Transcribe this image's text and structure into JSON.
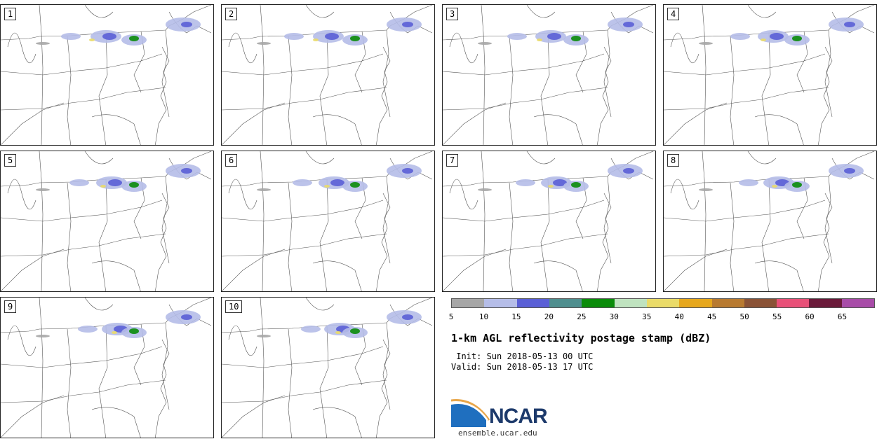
{
  "panels": [
    {
      "label": "1"
    },
    {
      "label": "2"
    },
    {
      "label": "3"
    },
    {
      "label": "4"
    },
    {
      "label": "5"
    },
    {
      "label": "6"
    },
    {
      "label": "7"
    },
    {
      "label": "8"
    },
    {
      "label": "9"
    },
    {
      "label": "10"
    }
  ],
  "colorbar": {
    "colors": [
      "#a6a6a6",
      "#b5bde8",
      "#5a5fd6",
      "#4f8f8f",
      "#0a8c0a",
      "#bfe3bf",
      "#eadb68",
      "#e6a71c",
      "#b87a30",
      "#8a5236",
      "#e85078",
      "#6a1a3a",
      "#a84ca8"
    ],
    "ticks": [
      "5",
      "10",
      "15",
      "20",
      "25",
      "30",
      "35",
      "40",
      "45",
      "50",
      "55",
      "60",
      "65"
    ]
  },
  "title": "1-km AGL reflectivity postage stamp (dBZ)",
  "init": " Init: Sun 2018-05-13 00 UTC",
  "valid": "Valid: Sun 2018-05-13 17 UTC",
  "logo": {
    "text": "NCAR",
    "website": "ensemble.ucar.edu"
  }
}
